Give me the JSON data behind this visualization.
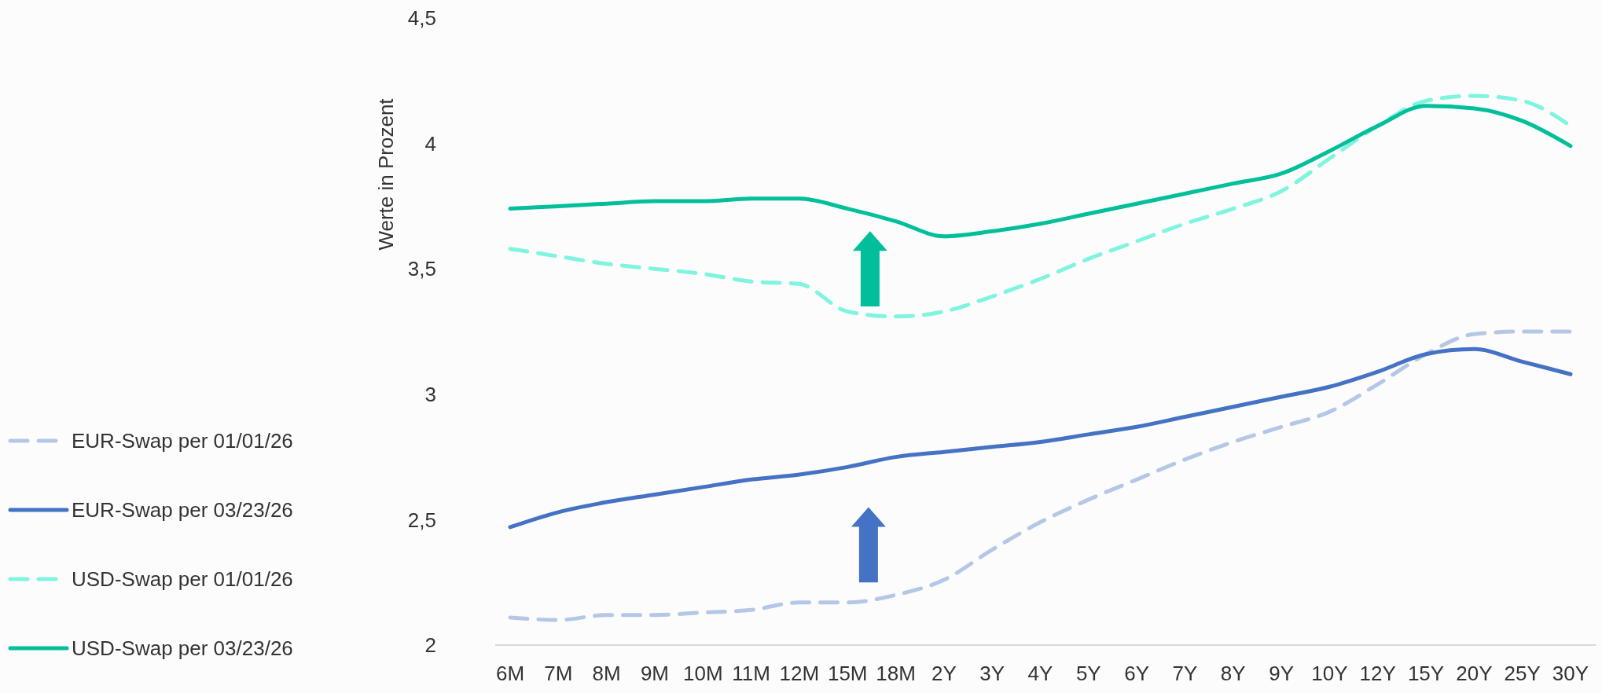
{
  "chart_data": {
    "type": "line",
    "ylabel": "Werte in Prozent",
    "categories": [
      "6M",
      "7M",
      "8M",
      "9M",
      "10M",
      "11M",
      "12M",
      "15M",
      "18M",
      "2Y",
      "3Y",
      "4Y",
      "5Y",
      "6Y",
      "7Y",
      "8Y",
      "9Y",
      "10Y",
      "12Y",
      "15Y",
      "20Y",
      "25Y",
      "30Y"
    ],
    "series": [
      {
        "name": "EUR-Swap per 01/01/26",
        "color": "#b4c7e7",
        "line_style": "dashed",
        "values": [
          2.11,
          2.1,
          2.12,
          2.12,
          2.13,
          2.14,
          2.17,
          2.17,
          2.2,
          2.26,
          2.38,
          2.49,
          2.58,
          2.66,
          2.74,
          2.81,
          2.87,
          2.93,
          3.04,
          3.16,
          3.24,
          3.25,
          3.25
        ]
      },
      {
        "name": "EUR-Swap per 03/23/26",
        "color": "#4472c4",
        "line_style": "solid",
        "values": [
          2.47,
          2.53,
          2.57,
          2.6,
          2.63,
          2.66,
          2.68,
          2.71,
          2.75,
          2.77,
          2.79,
          2.81,
          2.84,
          2.87,
          2.91,
          2.95,
          2.99,
          3.03,
          3.09,
          3.16,
          3.18,
          3.13,
          3.08
        ]
      },
      {
        "name": "USD-Swap per 01/01/26",
        "color": "#7ff5e0",
        "line_style": "dashed",
        "values": [
          3.58,
          3.55,
          3.52,
          3.5,
          3.48,
          3.45,
          3.44,
          3.33,
          3.31,
          3.33,
          3.39,
          3.46,
          3.54,
          3.61,
          3.68,
          3.74,
          3.81,
          3.94,
          4.07,
          4.17,
          4.19,
          4.17,
          4.07
        ]
      },
      {
        "name": "USD-Swap per 03/23/26",
        "color": "#00bf9a",
        "line_style": "solid",
        "values": [
          3.74,
          3.75,
          3.76,
          3.77,
          3.77,
          3.78,
          3.78,
          3.74,
          3.69,
          3.63,
          3.65,
          3.68,
          3.72,
          3.76,
          3.8,
          3.84,
          3.88,
          3.97,
          4.07,
          4.15,
          4.14,
          4.09,
          3.99
        ]
      }
    ],
    "ylim": [
      2,
      4.5
    ],
    "yticks": [
      2,
      {
        "value": 2.5,
        "label": "2,5"
      },
      3,
      {
        "value": 3.5,
        "label": "3,5"
      },
      4,
      {
        "value": 4.5,
        "label": "4,5"
      }
    ],
    "grid": false,
    "legend": "left",
    "marker": "none"
  }
}
